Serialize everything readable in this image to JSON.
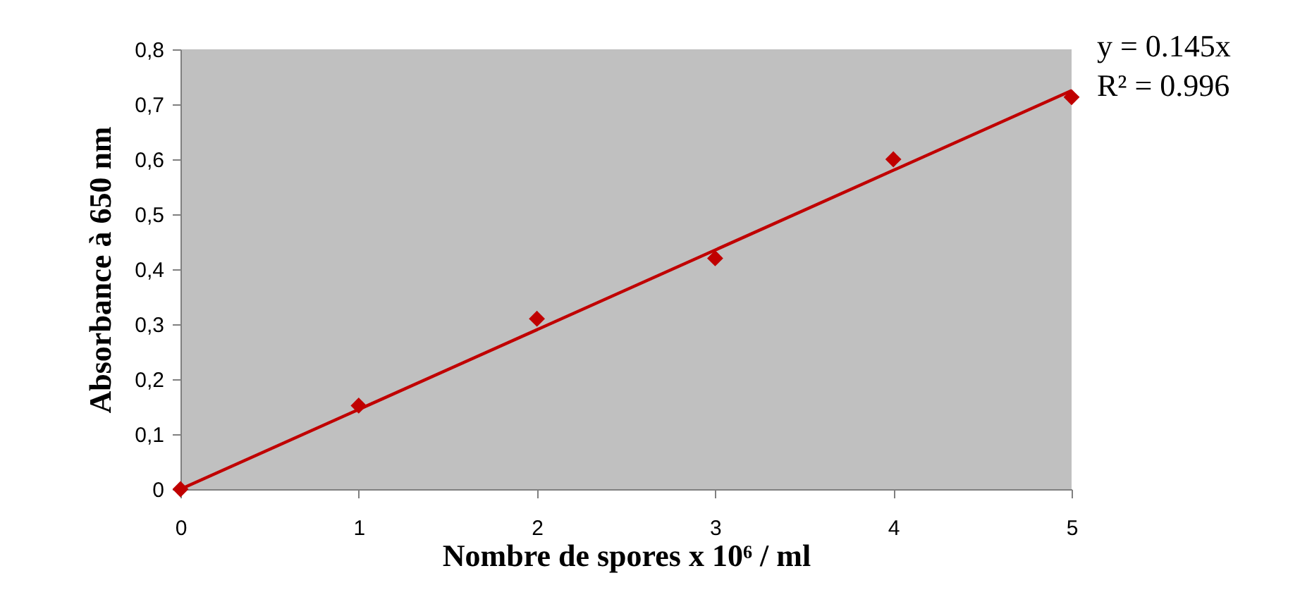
{
  "chart_data": {
    "type": "scatter",
    "xlabel": "Nombre de spores x 10⁶   / ml",
    "ylabel": "Absorbance à 650 nm",
    "x": [
      0,
      1,
      2,
      3,
      4,
      5
    ],
    "series": [
      {
        "color": "#c00000",
        "marker": "diamond",
        "values": [
          0,
          0.152,
          0.31,
          0.42,
          0.6,
          0.713
        ]
      },
      {
        "type": "line",
        "color": "#c00000",
        "line_style": "solid",
        "marker": "none",
        "x": [
          0,
          5
        ],
        "values": [
          0,
          0.725
        ]
      }
    ],
    "annotations": [
      "y = 0.145x",
      "R² = 0.996"
    ],
    "xlim": [
      0,
      5
    ],
    "xticks": [
      0,
      1,
      2,
      3,
      4,
      5
    ],
    "ylim": [
      0,
      0.8
    ],
    "yticks": [
      0,
      {
        "value": 0.1,
        "label": "0,1"
      },
      {
        "value": 0.2,
        "label": "0,2"
      },
      {
        "value": 0.3,
        "label": "0,3"
      },
      {
        "value": 0.4,
        "label": "0,4"
      },
      {
        "value": 0.5,
        "label": "0,5"
      },
      {
        "value": 0.6,
        "label": "0,6"
      },
      {
        "value": 0.7,
        "label": "0,7"
      },
      {
        "value": 0.8,
        "label": "0,8"
      }
    ],
    "grid": false
  }
}
